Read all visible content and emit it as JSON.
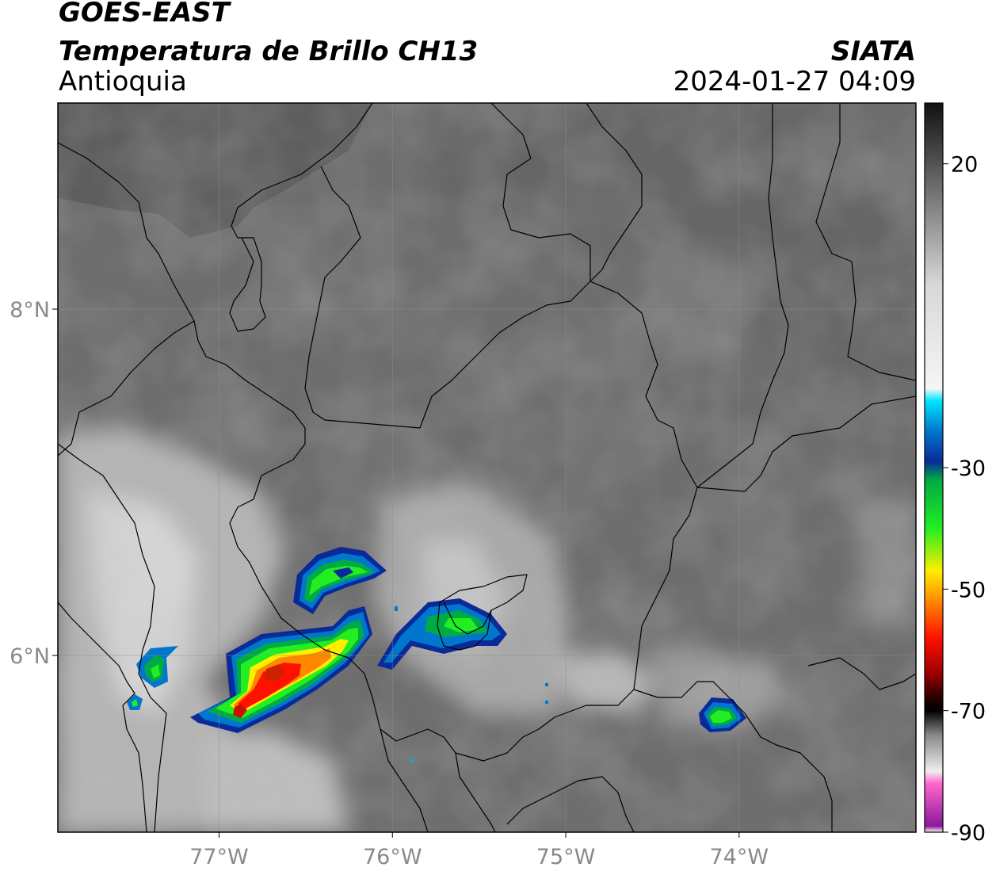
{
  "header": {
    "satellite": "GOES-EAST",
    "product": "Temperatura de Brillo CH13",
    "region": "Antioquia",
    "agency": "SIATA",
    "timestamp": "2024-01-27 04:09"
  },
  "map": {
    "lon_range": [
      -77.93,
      -72.98
    ],
    "lat_range": [
      4.98,
      9.19
    ],
    "lon_ticks": [
      {
        "value": -77,
        "label": "77°W"
      },
      {
        "value": -76,
        "label": "76°W"
      },
      {
        "value": -75,
        "label": "75°W"
      },
      {
        "value": -74,
        "label": "74°W"
      }
    ],
    "lat_ticks": [
      {
        "value": 8,
        "label": "8°N"
      },
      {
        "value": 6,
        "label": "6°N"
      }
    ],
    "gridlines": true,
    "colors": {
      "background_field": "#6f6f6f",
      "coast_sea_top": "#5f5f5f",
      "boundary": "#000000"
    }
  },
  "colorbar": {
    "range": [
      -90,
      30
    ],
    "ticks": [
      {
        "value": 20,
        "label": "20"
      },
      {
        "value": -30,
        "label": "-30"
      },
      {
        "value": -50,
        "label": "-50"
      },
      {
        "value": -70,
        "label": "-70"
      },
      {
        "value": -90,
        "label": "-90"
      }
    ],
    "stops": [
      {
        "value": 30,
        "color": "#111111"
      },
      {
        "value": 0,
        "color": "#d8d8d8"
      },
      {
        "value": -17,
        "color": "#f5f5f5"
      },
      {
        "value": -19,
        "color": "#00e5ff"
      },
      {
        "value": -24,
        "color": "#0077cc"
      },
      {
        "value": -29,
        "color": "#0a2a9a"
      },
      {
        "value": -32,
        "color": "#00aa44"
      },
      {
        "value": -40,
        "color": "#22ee22"
      },
      {
        "value": -47,
        "color": "#ffee00"
      },
      {
        "value": -52,
        "color": "#ff8800"
      },
      {
        "value": -58,
        "color": "#ff1100"
      },
      {
        "value": -64,
        "color": "#990000"
      },
      {
        "value": -68,
        "color": "#220000"
      },
      {
        "value": -70,
        "color": "#000000"
      },
      {
        "value": -74,
        "color": "#888888"
      },
      {
        "value": -80,
        "color": "#eeeeee"
      },
      {
        "value": -82,
        "color": "#ff66cc"
      },
      {
        "value": -89,
        "color": "#8a1a9a"
      },
      {
        "value": -90,
        "color": "#ffffff"
      }
    ]
  }
}
